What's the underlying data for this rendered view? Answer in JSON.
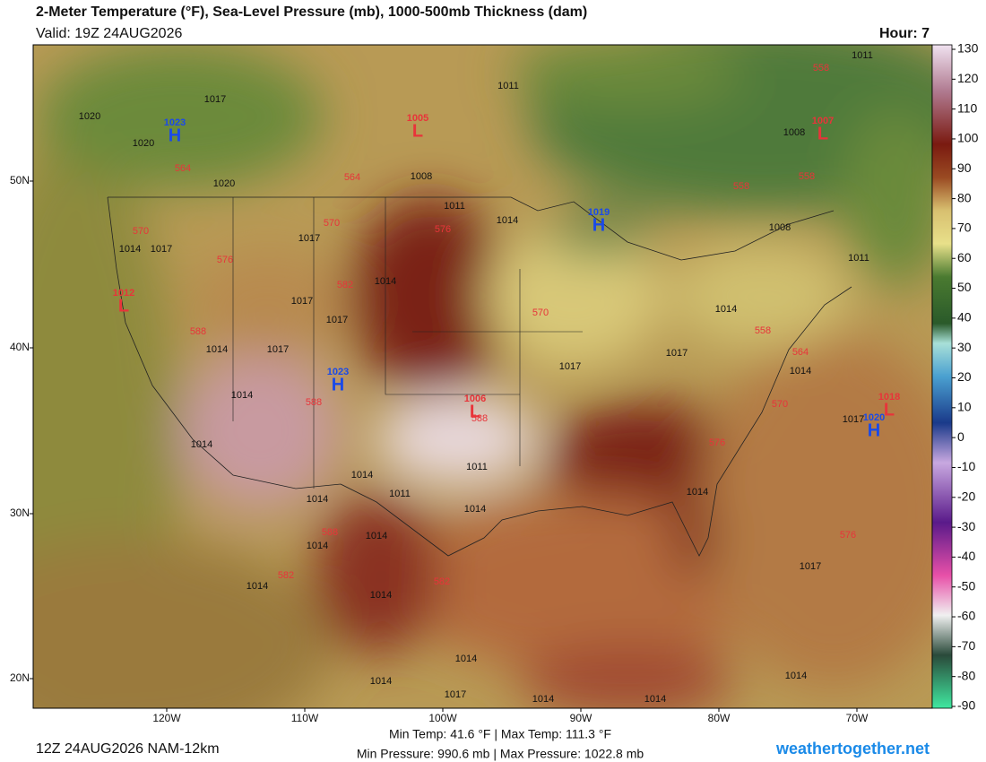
{
  "header": {
    "title": "2-Meter Temperature (°F), Sea-Level Pressure (mb), 1000-500mb Thickness (dam)",
    "valid": "Valid: 19Z 24AUG2026",
    "hour": "Hour: 7"
  },
  "colorbar": {
    "ticks": [
      130,
      120,
      110,
      100,
      90,
      80,
      70,
      60,
      50,
      40,
      30,
      20,
      10,
      0,
      -10,
      -20,
      -30,
      -40,
      -50,
      -60,
      -70,
      -80,
      -90
    ]
  },
  "map": {
    "lat_labels": [
      "50N",
      "40N",
      "30N",
      "20N"
    ],
    "lon_labels": [
      "120W",
      "110W",
      "100W",
      "90W",
      "80W",
      "70W"
    ],
    "isobar_labels": [
      "1017",
      "1020",
      "1020",
      "1020",
      "1011",
      "1011",
      "1008",
      "1008",
      "1011",
      "1014",
      "1017",
      "1014",
      "1017",
      "1008",
      "1011",
      "1014",
      "1017",
      "1017",
      "1014",
      "1014",
      "1017",
      "1017",
      "1017",
      "1014",
      "1014",
      "1017",
      "1014",
      "1011",
      "1014",
      "1011",
      "1014",
      "1014",
      "1014",
      "1014",
      "1014",
      "1017",
      "1014",
      "1014",
      "1014",
      "1017",
      "1014",
      "1014",
      "1014",
      "1014"
    ],
    "thickness_labels": [
      "558",
      "564",
      "564",
      "558",
      "558",
      "570",
      "576",
      "570",
      "576",
      "582",
      "570",
      "588",
      "558",
      "564",
      "588",
      "588",
      "570",
      "576",
      "588",
      "576",
      "582",
      "582"
    ],
    "highs": [
      {
        "symbol": "H",
        "pressure": "1023"
      },
      {
        "symbol": "H",
        "pressure": "1019"
      },
      {
        "symbol": "H",
        "pressure": "1023"
      },
      {
        "symbol": "H",
        "pressure": "1020"
      }
    ],
    "lows": [
      {
        "symbol": "L",
        "pressure": "1005"
      },
      {
        "symbol": "L",
        "pressure": "1007"
      },
      {
        "symbol": "L",
        "pressure": "1012"
      },
      {
        "symbol": "L",
        "pressure": "1006"
      },
      {
        "symbol": "L",
        "pressure": "1018"
      }
    ]
  },
  "footer": {
    "temp": "Min Temp:  41.6 °F | Max Temp: 111.3 °F",
    "pressure": "Min Pressure: 990.6 mb | Max Pressure: 1022.8 mb",
    "run": "12Z 24AUG2026 NAM-12km",
    "site": "weathertogether.net"
  }
}
